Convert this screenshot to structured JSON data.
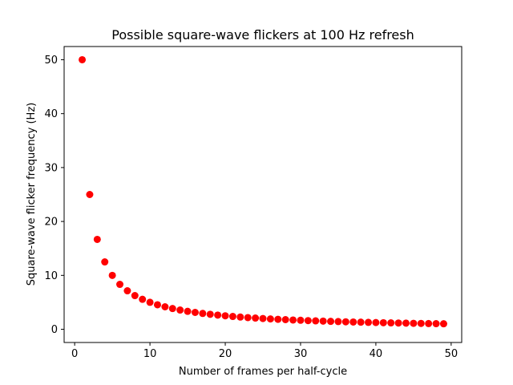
{
  "chart_data": {
    "type": "scatter",
    "title": "Possible square-wave flickers at 100 Hz refresh",
    "xlabel": "Number of frames per half-cycle",
    "ylabel": "Square-wave flicker frequency (Hz)",
    "xlim": [
      -1.4,
      51.4
    ],
    "ylim": [
      -2.45,
      52.45
    ],
    "xticks": [
      0,
      10,
      20,
      30,
      40,
      50
    ],
    "yticks": [
      0,
      10,
      20,
      30,
      40,
      50
    ],
    "grid": false,
    "marker_color": "#ff0000",
    "series": [
      {
        "x": [
          1,
          2,
          3,
          4,
          5,
          6,
          7,
          8,
          9,
          10,
          11,
          12,
          13,
          14,
          15,
          16,
          17,
          18,
          19,
          20,
          21,
          22,
          23,
          24,
          25,
          26,
          27,
          28,
          29,
          30,
          31,
          32,
          33,
          34,
          35,
          36,
          37,
          38,
          39,
          40,
          41,
          42,
          43,
          44,
          45,
          46,
          47,
          48,
          49
        ],
        "y": [
          50,
          25,
          16.67,
          12.5,
          10,
          8.33,
          7.14,
          6.25,
          5.56,
          5,
          4.55,
          4.17,
          3.85,
          3.57,
          3.33,
          3.13,
          2.94,
          2.78,
          2.63,
          2.5,
          2.38,
          2.27,
          2.17,
          2.08,
          2,
          1.92,
          1.85,
          1.79,
          1.72,
          1.67,
          1.61,
          1.56,
          1.52,
          1.47,
          1.43,
          1.39,
          1.35,
          1.32,
          1.28,
          1.25,
          1.22,
          1.19,
          1.16,
          1.14,
          1.11,
          1.09,
          1.06,
          1.04,
          1.02
        ]
      }
    ]
  }
}
